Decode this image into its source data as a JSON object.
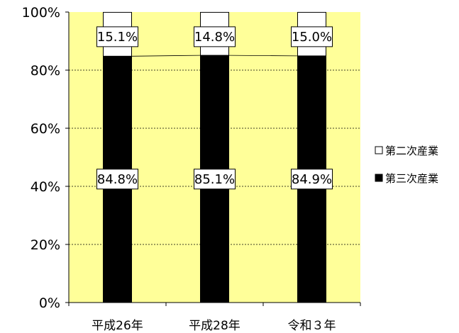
{
  "chart_data": {
    "type": "bar",
    "stacked": true,
    "percent": true,
    "categories": [
      "平成26年",
      "平成28年",
      "令和３年"
    ],
    "series": [
      {
        "name": "第三次産業",
        "values": [
          84.8,
          85.1,
          84.9
        ],
        "labels": [
          "84.8%",
          "85.1%",
          "84.9%"
        ],
        "color": "#000000"
      },
      {
        "name": "第二次産業",
        "values": [
          15.1,
          14.8,
          15.0
        ],
        "labels": [
          "15.1%",
          "14.8%",
          "15.0%"
        ],
        "color": "#ffffff"
      }
    ],
    "legend_order": [
      "第二次産業",
      "第三次産業"
    ],
    "y_ticks": [
      "0%",
      "20%",
      "40%",
      "60%",
      "80%",
      "100%"
    ],
    "ylim": [
      0,
      100
    ],
    "series_lines": true,
    "grid": "dashed",
    "legend_position": "right",
    "plot_background": "#ffff99"
  }
}
